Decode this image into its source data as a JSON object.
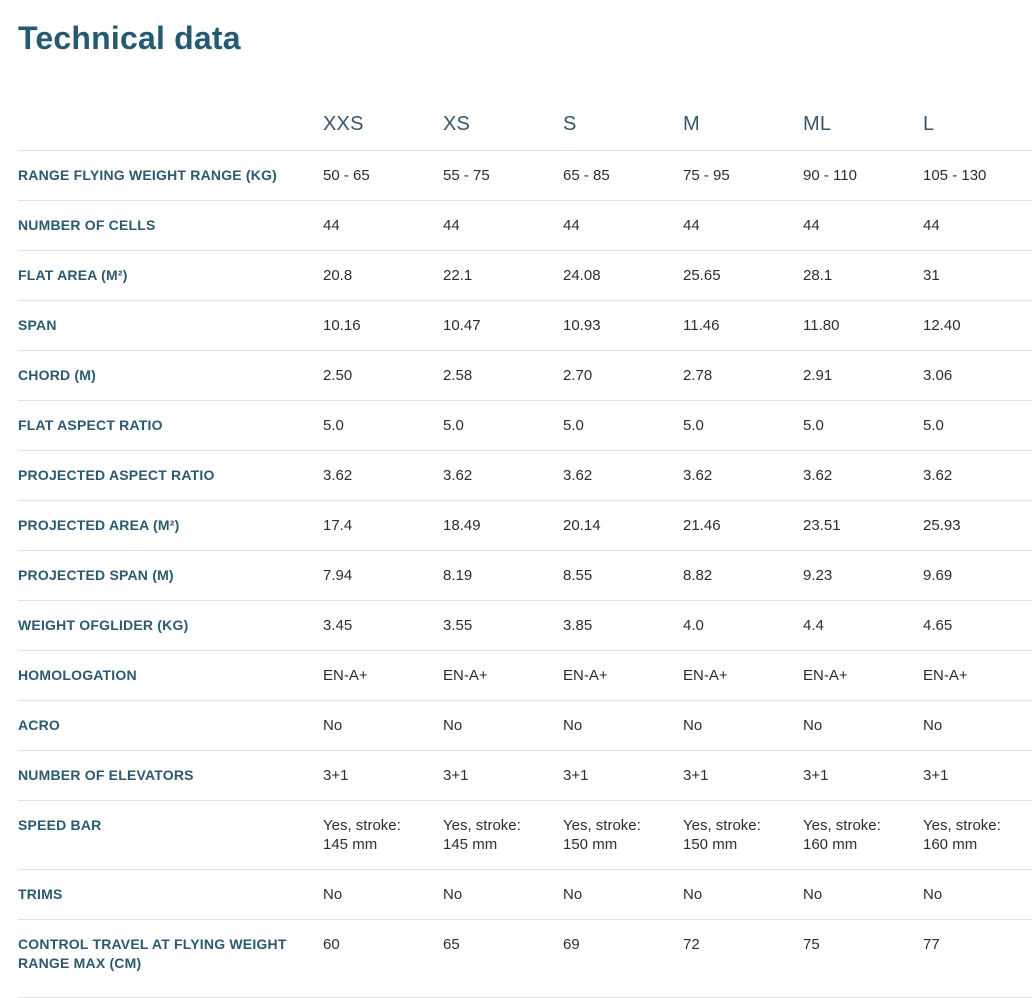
{
  "page": {
    "title": "Technical data"
  },
  "colors": {
    "title_text": "#255a71",
    "header_text": "#36576b",
    "label_text": "#2b5a70",
    "value_text": "#2d2d2d",
    "divider": "#e2e2e2",
    "background": "#ffffff"
  },
  "table": {
    "sizes": [
      "XXS",
      "XS",
      "S",
      "M",
      "ML",
      "L"
    ],
    "rows": [
      {
        "label": "RANGE FLYING WEIGHT RANGE (KG)",
        "values": [
          "50 - 65",
          "55 - 75",
          "65 - 85",
          "75 - 95",
          "90 - 110",
          "105 - 130"
        ]
      },
      {
        "label": "NUMBER OF CELLS",
        "values": [
          "44",
          "44",
          "44",
          "44",
          "44",
          "44"
        ]
      },
      {
        "label": "FLAT AREA (M²)",
        "values": [
          "20.8",
          "22.1",
          "24.08",
          "25.65",
          "28.1",
          "31"
        ]
      },
      {
        "label": "SPAN",
        "values": [
          "10.16",
          "10.47",
          "10.93",
          "11.46",
          "11.80",
          "12.40"
        ]
      },
      {
        "label": "CHORD (M)",
        "values": [
          "2.50",
          "2.58",
          "2.70",
          "2.78",
          "2.91",
          "3.06"
        ]
      },
      {
        "label": "FLAT ASPECT RATIO",
        "values": [
          "5.0",
          "5.0",
          "5.0",
          "5.0",
          "5.0",
          "5.0"
        ]
      },
      {
        "label": "PROJECTED ASPECT RATIO",
        "values": [
          "3.62",
          "3.62",
          "3.62",
          "3.62",
          "3.62",
          "3.62"
        ]
      },
      {
        "label": "PROJECTED AREA (M²)",
        "values": [
          "17.4",
          "18.49",
          "20.14",
          "21.46",
          "23.51",
          "25.93"
        ]
      },
      {
        "label": "PROJECTED SPAN (M)",
        "values": [
          "7.94",
          "8.19",
          "8.55",
          "8.82",
          "9.23",
          "9.69"
        ]
      },
      {
        "label": "WEIGHT OFGLIDER (KG)",
        "values": [
          "3.45",
          "3.55",
          "3.85",
          "4.0",
          "4.4",
          "4.65"
        ]
      },
      {
        "label": "HOMOLOGATION",
        "values": [
          "EN-A+",
          "EN-A+",
          "EN-A+",
          "EN-A+",
          "EN-A+",
          "EN-A+"
        ]
      },
      {
        "label": "ACRO",
        "values": [
          "No",
          "No",
          "No",
          "No",
          "No",
          "No"
        ]
      },
      {
        "label": "NUMBER OF ELEVATORS",
        "values": [
          "3+1",
          "3+1",
          "3+1",
          "3+1",
          "3+1",
          "3+1"
        ]
      },
      {
        "label": "SPEED BAR",
        "values": [
          "Yes, stroke: 145 mm",
          "Yes, stroke: 145 mm",
          "Yes, stroke: 150 mm",
          "Yes, stroke: 150 mm",
          "Yes, stroke: 160 mm",
          "Yes, stroke: 160 mm"
        ]
      },
      {
        "label": "TRIMS",
        "values": [
          "No",
          "No",
          "No",
          "No",
          "No",
          "No"
        ]
      },
      {
        "label": "CONTROL TRAVEL AT FLYING WEIGHT RANGE MAX (CM)",
        "values": [
          "60",
          "65",
          "69",
          "72",
          "75",
          "77"
        ]
      }
    ]
  }
}
